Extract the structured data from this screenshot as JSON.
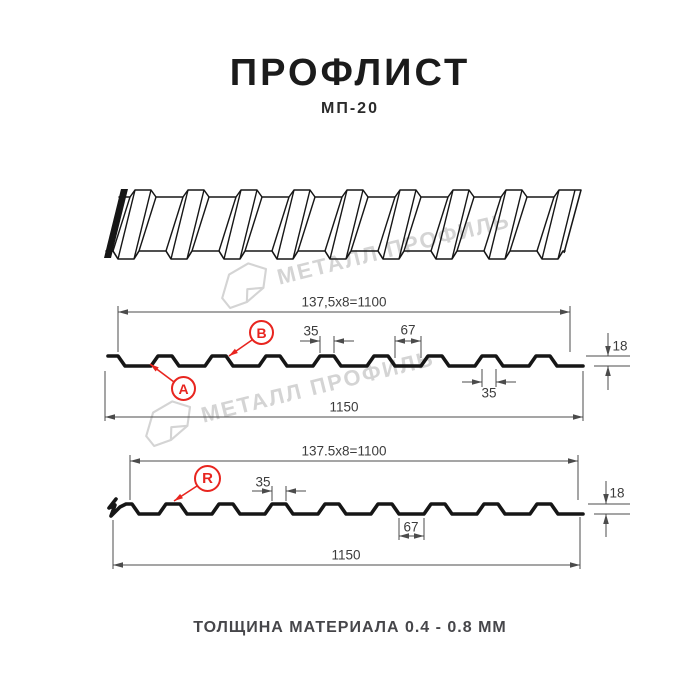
{
  "title": "ПРОФЛИСТ",
  "subtitle": "МП-20",
  "footer_note": "ТОЛЩИНА МАТЕРИАЛА 0.4 - 0.8 ММ",
  "watermark": {
    "text": "МЕТАЛЛ ПРОФИЛЬ",
    "color": "#d4d4d4"
  },
  "colors": {
    "profile_line": "#161616",
    "dim_line": "#4b4b4b",
    "dim_text": "#3c3c3c",
    "accent_red": "#e8251f",
    "title_text": "#1b1b1b"
  },
  "view_3d": {
    "description": "perspective view of corrugated sheet",
    "rib_count": 9
  },
  "profiles": [
    {
      "id": "profile-ab",
      "side_labels": [
        "A",
        "B"
      ],
      "dims": {
        "pitch_total": "137,5x8=1100",
        "crest_top_width": "35",
        "valley_width": "67",
        "height": "18",
        "crest_bottom_width": "35",
        "overall_width": "1150"
      }
    },
    {
      "id": "profile-r",
      "side_labels": [
        "R"
      ],
      "dims": {
        "pitch_total": "137.5x8=1100",
        "crest_top_width": "35",
        "valley_width": "67",
        "height": "18",
        "overall_width": "1150"
      }
    }
  ]
}
